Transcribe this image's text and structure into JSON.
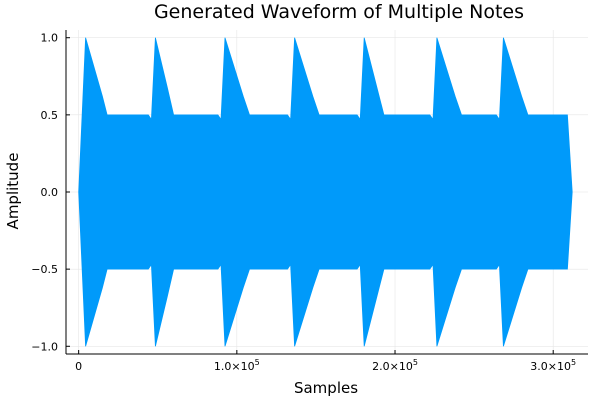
{
  "chart_data": {
    "type": "area",
    "title": "Generated Waveform of Multiple Notes",
    "xlabel": "Samples",
    "ylabel": "Amplitude",
    "xlim": [
      -8000,
      322000
    ],
    "ylim": [
      -1.05,
      1.05
    ],
    "grid": true,
    "legend": "none",
    "x_ticks": [
      {
        "value": 0,
        "mantissa": "0",
        "exponent": ""
      },
      {
        "value": 100000,
        "mantissa": "1.0×10",
        "exponent": "5"
      },
      {
        "value": 200000,
        "mantissa": "2.0×10",
        "exponent": "5"
      },
      {
        "value": 300000,
        "mantissa": "3.0×10",
        "exponent": "5"
      }
    ],
    "y_ticks": [
      {
        "value": -1.0,
        "label": "−1.0"
      },
      {
        "value": -0.5,
        "label": "−0.5"
      },
      {
        "value": 0.0,
        "label": "0.0"
      },
      {
        "value": 0.5,
        "label": "0.5"
      },
      {
        "value": 1.0,
        "label": "1.0"
      }
    ],
    "color": "#009AFA",
    "series": [
      {
        "envelope": [
          [
            0,
            0.0
          ],
          [
            4400,
            1.0
          ],
          [
            15000,
            0.62
          ],
          [
            18000,
            0.5
          ],
          [
            44000,
            0.5
          ],
          [
            46000,
            0.47
          ],
          [
            48500,
            1.0
          ],
          [
            56000,
            0.68
          ],
          [
            60000,
            0.5
          ],
          [
            88000,
            0.5
          ],
          [
            90000,
            0.47
          ],
          [
            92500,
            1.0
          ],
          [
            104000,
            0.62
          ],
          [
            108000,
            0.5
          ],
          [
            132000,
            0.5
          ],
          [
            134000,
            0.47
          ],
          [
            136500,
            1.0
          ],
          [
            148000,
            0.62
          ],
          [
            152000,
            0.5
          ],
          [
            176000,
            0.5
          ],
          [
            178000,
            0.47
          ],
          [
            180500,
            1.0
          ],
          [
            189000,
            0.66
          ],
          [
            193000,
            0.5
          ],
          [
            222000,
            0.5
          ],
          [
            224000,
            0.47
          ],
          [
            226500,
            1.0
          ],
          [
            238000,
            0.62
          ],
          [
            242000,
            0.5
          ],
          [
            264000,
            0.5
          ],
          [
            266000,
            0.47
          ],
          [
            268500,
            1.0
          ],
          [
            280000,
            0.62
          ],
          [
            284000,
            0.5
          ],
          [
            309000,
            0.5
          ],
          [
            312000,
            0.0
          ]
        ]
      }
    ]
  }
}
